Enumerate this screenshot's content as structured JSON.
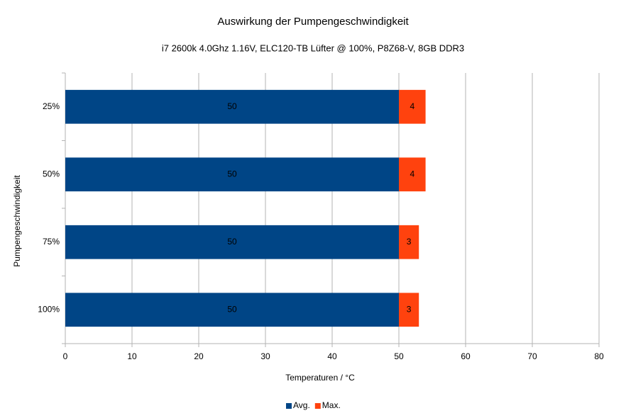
{
  "chart_data": {
    "type": "bar",
    "orientation": "horizontal",
    "stacked": true,
    "title": "Auswirkung der Pumpengeschwindigkeit",
    "subtitle": "i7 2600k 4.0Ghz 1.16V, ELC120-TB Lüfter @ 100%, P8Z68-V, 8GB DDR3",
    "x_label": "Temperaturen / °C",
    "y_label": "Pumpengeschwindigkeit",
    "categories": [
      "25%",
      "50%",
      "75%",
      "100%"
    ],
    "series": [
      {
        "name": "Avg.",
        "color": "#004586",
        "values": [
          50,
          50,
          50,
          50
        ]
      },
      {
        "name": "Max.",
        "color": "#ff420e",
        "values": [
          4,
          4,
          3,
          3
        ]
      }
    ],
    "xlim": [
      0,
      80
    ],
    "xticks": [
      0,
      10,
      20,
      30,
      40,
      50,
      60,
      70,
      80
    ],
    "grid": true,
    "legend": "bottom"
  }
}
